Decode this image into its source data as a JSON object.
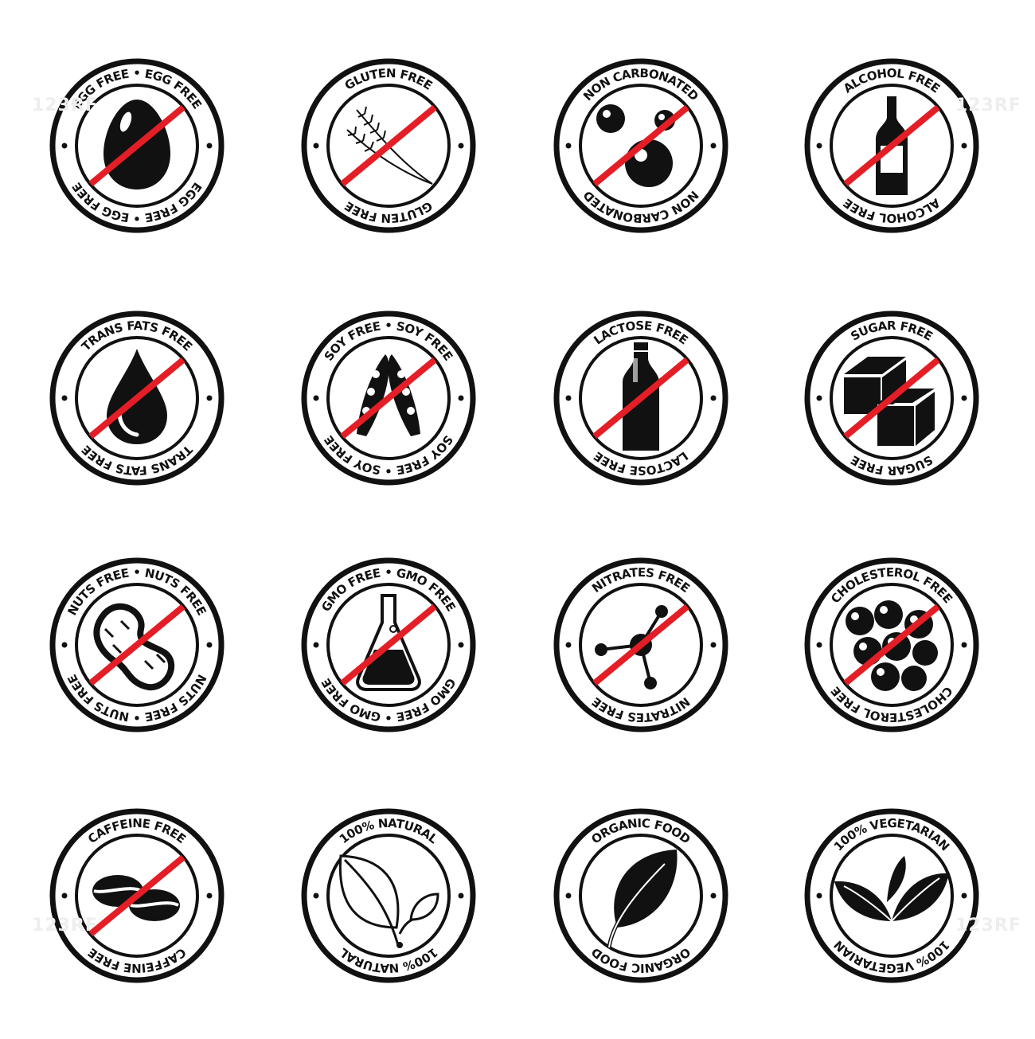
{
  "colors": {
    "ink": "#111111",
    "strike": "#e41e26",
    "background": "#ffffff"
  },
  "badges": [
    {
      "top": "EGG FREE • EGG FREE",
      "bottom": "EGG FREE • EGG FREE",
      "icon": "egg-icon",
      "crossed": true
    },
    {
      "top": "GLUTEN FREE",
      "bottom": "GLUTEN FREE",
      "icon": "wheat-icon",
      "crossed": true
    },
    {
      "top": "NON CARBONATED",
      "bottom": "NON CARBONATED",
      "icon": "bubbles-icon",
      "crossed": true
    },
    {
      "top": "ALCOHOL FREE",
      "bottom": "ALCOHOL FREE",
      "icon": "wine-bottle-icon",
      "crossed": true
    },
    {
      "top": "TRANS FATS FREE",
      "bottom": "TRANS FATS FREE",
      "icon": "oil-drop-icon",
      "crossed": true
    },
    {
      "top": "SOY FREE • SOY FREE",
      "bottom": "SOY FREE • SOY FREE",
      "icon": "soybean-pods-icon",
      "crossed": true
    },
    {
      "top": "LACTOSE FREE",
      "bottom": "LACTOSE FREE",
      "icon": "milk-bottle-icon",
      "crossed": true
    },
    {
      "top": "SUGAR FREE",
      "bottom": "SUGAR FREE",
      "icon": "sugar-cubes-icon",
      "crossed": true
    },
    {
      "top": "NUTS FREE • NUTS FREE",
      "bottom": "NUTS FREE • NUTS FREE",
      "icon": "peanut-icon",
      "crossed": true
    },
    {
      "top": "GMO FREE • GMO FREE",
      "bottom": "GMO FREE • GMO FREE",
      "icon": "flask-icon",
      "crossed": true
    },
    {
      "top": "NITRATES FREE",
      "bottom": "NITRATES FREE",
      "icon": "molecule-icon",
      "crossed": true
    },
    {
      "top": "CHOLESTEROL FREE",
      "bottom": "CHOLESTEROL FREE",
      "icon": "fat-cells-icon",
      "crossed": true
    },
    {
      "top": "CAFFEINE FREE",
      "bottom": "CAFFEINE FREE",
      "icon": "coffee-beans-icon",
      "crossed": true
    },
    {
      "top": "100% NATURAL",
      "bottom": "100% NATURAL",
      "icon": "sprout-outline-icon",
      "crossed": false
    },
    {
      "top": "ORGANIC FOOD",
      "bottom": "ORGANIC FOOD",
      "icon": "leaf-icon",
      "crossed": false
    },
    {
      "top": "100% VEGETARIAN",
      "bottom": "100% VEGETARIAN",
      "icon": "two-leaves-icon",
      "crossed": false
    }
  ],
  "watermark": "123RF"
}
